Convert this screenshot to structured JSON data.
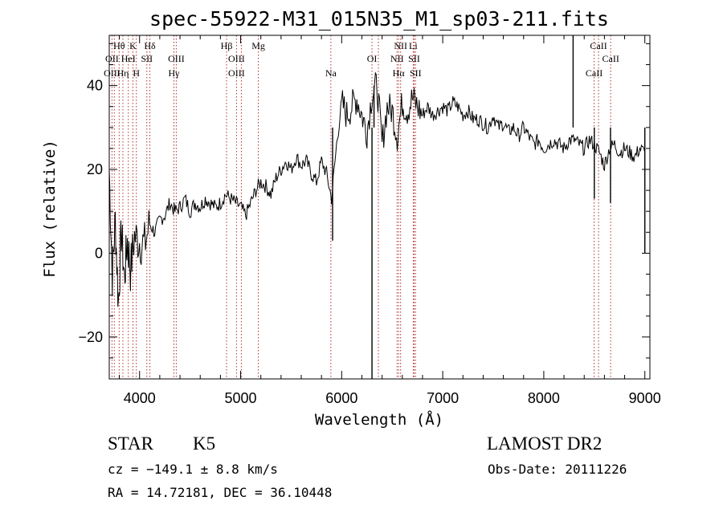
{
  "chart_data": {
    "type": "line",
    "title": "spec-55922-M31_015N35_M1_sp03-211.fits",
    "xlabel": "Wavelength (Å)",
    "ylabel": "Flux (relative)",
    "xlim": [
      3700,
      9050
    ],
    "ylim": [
      -30,
      52
    ],
    "xticks": [
      4000,
      5000,
      6000,
      7000,
      8000,
      9000
    ],
    "xtick_labels": [
      "4000",
      "5000",
      "6000",
      "7000",
      "8000",
      "9000"
    ],
    "yticks": [
      -20,
      0,
      20,
      40
    ],
    "ytick_labels": [
      "−20",
      "0",
      "20",
      "40"
    ],
    "grid": false,
    "series": [
      {
        "x": [
          3700,
          3730,
          3760,
          3790,
          3820,
          3850,
          3880,
          3910,
          3950,
          4000,
          4050,
          4100,
          4150,
          4200,
          4250,
          4300,
          4350,
          4400,
          4450,
          4500,
          4550,
          4600,
          4650,
          4700,
          4750,
          4800,
          4850,
          4900,
          4950,
          5000,
          5050,
          5100,
          5150,
          5200,
          5250,
          5300,
          5350,
          5400,
          5450,
          5500,
          5550,
          5600,
          5650,
          5700,
          5750,
          5800,
          5850,
          5900,
          5950,
          6000,
          6050,
          6100,
          6150,
          6200,
          6250,
          6300,
          6350,
          6400,
          6450,
          6500,
          6550,
          6600,
          6650,
          6700,
          6750,
          6800,
          6850,
          6900,
          6950,
          7000,
          7050,
          7100,
          7150,
          7200,
          7250,
          7300,
          7350,
          7400,
          7450,
          7500,
          7550,
          7600,
          7650,
          7700,
          7750,
          7800,
          7850,
          7900,
          7950,
          8000,
          8050,
          8100,
          8150,
          8200,
          8250,
          8300,
          8350,
          8400,
          8450,
          8500,
          8550,
          8600,
          8650,
          8700,
          8750,
          8800,
          8850,
          8900,
          8950,
          9000
        ],
        "y": [
          20,
          -5,
          8,
          -12,
          5,
          -6,
          3,
          -4,
          4,
          3,
          2,
          7,
          5,
          8,
          9,
          12,
          10,
          11,
          13,
          10,
          12,
          11,
          13,
          12,
          11,
          12,
          14,
          13,
          12,
          11,
          9,
          12,
          15,
          17,
          16,
          14,
          18,
          20,
          22,
          20,
          23,
          21,
          22,
          19,
          17,
          22,
          19,
          13,
          26,
          36,
          33,
          35,
          37,
          33,
          29,
          38,
          40,
          26,
          35,
          34,
          28,
          36,
          34,
          37,
          35,
          33,
          35,
          33,
          34,
          35,
          34,
          36,
          35,
          33,
          34,
          32,
          32,
          31,
          30,
          33,
          30,
          31,
          29,
          30,
          28,
          30,
          28,
          26,
          27,
          25,
          26,
          27,
          26,
          25,
          27,
          27,
          26,
          25,
          27,
          26,
          24,
          21,
          25,
          26,
          24,
          25,
          24,
          23,
          25,
          24
        ],
        "spikes": [
          {
            "x": 6300,
            "y": -30
          },
          {
            "x": 6320,
            "y": 40
          },
          {
            "x": 8290,
            "y": 52
          },
          {
            "x": 8500,
            "y": 13
          },
          {
            "x": 8660,
            "y": 12
          },
          {
            "x": 9000,
            "y": 0
          },
          {
            "x": 5910,
            "y": 3
          }
        ]
      }
    ],
    "line_labels": [
      {
        "text": "Hθ",
        "x": 3798,
        "row": 0
      },
      {
        "text": "K",
        "x": 3934,
        "row": 0
      },
      {
        "text": "Hδ",
        "x": 4102,
        "row": 0
      },
      {
        "text": "Hβ",
        "x": 4861,
        "row": 0
      },
      {
        "text": "Mg",
        "x": 5175,
        "row": 0
      },
      {
        "text": "NII",
        "x": 6583,
        "row": 0
      },
      {
        "text": "Li",
        "x": 6708,
        "row": 0
      },
      {
        "text": "CaII",
        "x": 8542,
        "row": 0
      },
      {
        "text": "OII",
        "x": 3727,
        "row": 1
      },
      {
        "text": "HeI",
        "x": 3889,
        "row": 1
      },
      {
        "text": "SII",
        "x": 4072,
        "row": 1
      },
      {
        "text": "OIII",
        "x": 4363,
        "row": 1
      },
      {
        "text": "OIII",
        "x": 4959,
        "row": 1
      },
      {
        "text": "OI",
        "x": 6300,
        "row": 1
      },
      {
        "text": "NII",
        "x": 6548,
        "row": 1
      },
      {
        "text": "SII",
        "x": 6717,
        "row": 1
      },
      {
        "text": "CaII",
        "x": 8662,
        "row": 1
      },
      {
        "text": "OIII",
        "x": 3727,
        "row": 2
      },
      {
        "text": "Hη",
        "x": 3835,
        "row": 2
      },
      {
        "text": "H",
        "x": 3968,
        "row": 2
      },
      {
        "text": "Hγ",
        "x": 4340,
        "row": 2
      },
      {
        "text": "OIII",
        "x": 4959,
        "row": 2
      },
      {
        "text": "Na",
        "x": 5893,
        "row": 2
      },
      {
        "text": "Hα",
        "x": 6563,
        "row": 2
      },
      {
        "text": "SII",
        "x": 6731,
        "row": 2
      },
      {
        "text": "CaII",
        "x": 8498,
        "row": 2
      }
    ],
    "marker_lines": [
      3727,
      3750,
      3798,
      3835,
      3889,
      3934,
      3968,
      4072,
      4102,
      4340,
      4363,
      4861,
      4959,
      5007,
      5175,
      5893,
      6300,
      6363,
      6548,
      6563,
      6583,
      6708,
      6717,
      6731,
      8498,
      8542,
      8662
    ],
    "marker_color": "#b03030"
  },
  "info": {
    "class": "STAR",
    "subclass": "K5",
    "survey": "LAMOST DR2",
    "cz": "cz = −149.1 ± 8.8 km/s",
    "obs_date": "Obs-Date: 20111226",
    "radec": "RA =  14.72181, DEC =  36.10448"
  }
}
